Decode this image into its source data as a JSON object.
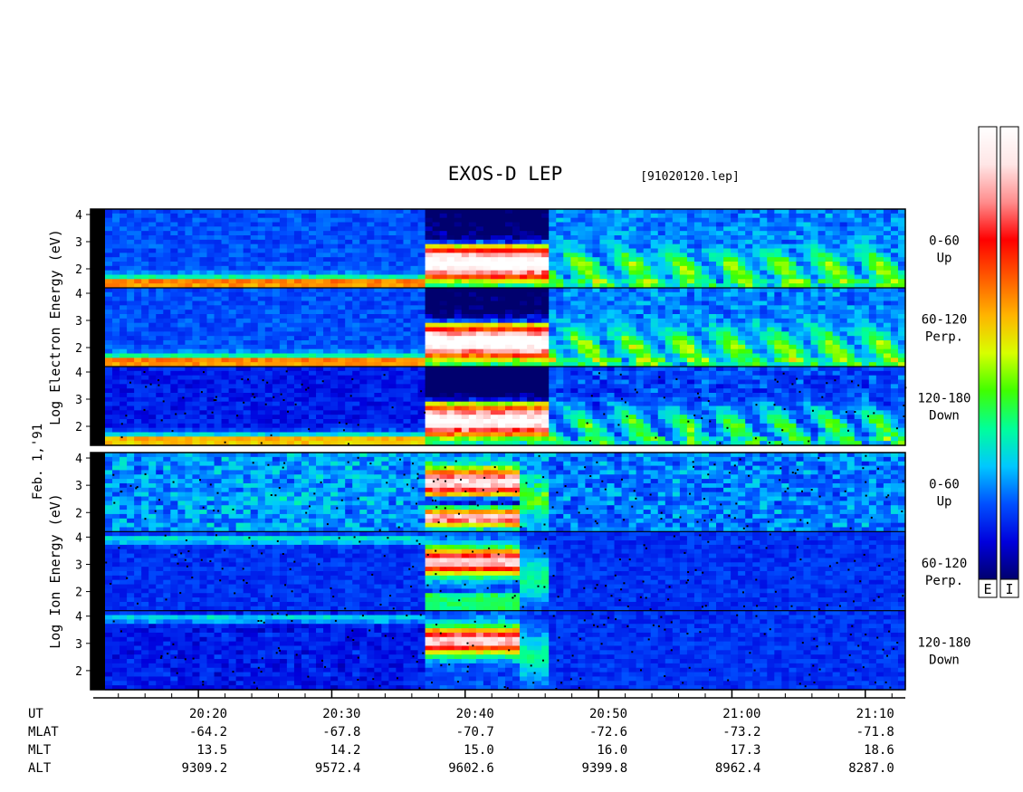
{
  "chart_data": {
    "type": "heatmap",
    "title": "EXOS-D LEP",
    "file_label": "[91020120.lep]",
    "date_label": "Feb. 1,'91",
    "panels": [
      {
        "species": "Electron",
        "ylabel": "Log Electron Energy (eV)",
        "yticks": [
          "2",
          "3",
          "4"
        ],
        "ylim": [
          1.3,
          4.2
        ],
        "pitch_bins": [
          {
            "range": "0-60",
            "direction": "Up"
          },
          {
            "range": "60-120",
            "direction": "Perp."
          },
          {
            "range": "120-180",
            "direction": "Down"
          }
        ]
      },
      {
        "species": "Ion",
        "ylabel": "Log Ion Energy (eV)",
        "yticks": [
          "2",
          "3",
          "4"
        ],
        "ylim": [
          1.3,
          4.2
        ],
        "pitch_bins": [
          {
            "range": "0-60",
            "direction": "Up"
          },
          {
            "range": "60-120",
            "direction": "Perp."
          },
          {
            "range": "120-180",
            "direction": "Down"
          }
        ]
      }
    ],
    "x_axis": {
      "quantity": "UT",
      "range": [
        "20:13",
        "21:13"
      ],
      "major_ticks": [
        "20:20",
        "20:30",
        "20:40",
        "20:50",
        "21:00",
        "21:10"
      ],
      "minor_tick_interval_min": 2
    },
    "ephemeris": {
      "rows": [
        "UT",
        "MLAT",
        "MLT",
        "ALT"
      ],
      "columns": [
        {
          "UT": "20:20",
          "MLAT": "-64.2",
          "MLT": "13.5",
          "ALT": "9309.2"
        },
        {
          "UT": "20:30",
          "MLAT": "-67.8",
          "MLT": "14.2",
          "ALT": "9572.4"
        },
        {
          "UT": "20:40",
          "MLAT": "-70.7",
          "MLT": "15.0",
          "ALT": "9602.6"
        },
        {
          "UT": "20:50",
          "MLAT": "-72.6",
          "MLT": "16.0",
          "ALT": "9399.8"
        },
        {
          "UT": "21:00",
          "MLAT": "-73.2",
          "MLT": "17.3",
          "ALT": "8962.4"
        },
        {
          "UT": "21:10",
          "MLAT": "-71.8",
          "MLT": "18.6",
          "ALT": "8287.0"
        }
      ]
    },
    "colorbars": [
      {
        "label": "E",
        "species": "Electron"
      },
      {
        "label": "I",
        "species": "Ion"
      }
    ],
    "colormap": [
      "#00006e",
      "#0000dc",
      "#0050ff",
      "#00c8ff",
      "#00ff9a",
      "#40ff00",
      "#d8ff00",
      "#ffb400",
      "#ff5a00",
      "#ff0000",
      "#ff8c8c",
      "#ffe6e6",
      "#ffffff"
    ]
  }
}
